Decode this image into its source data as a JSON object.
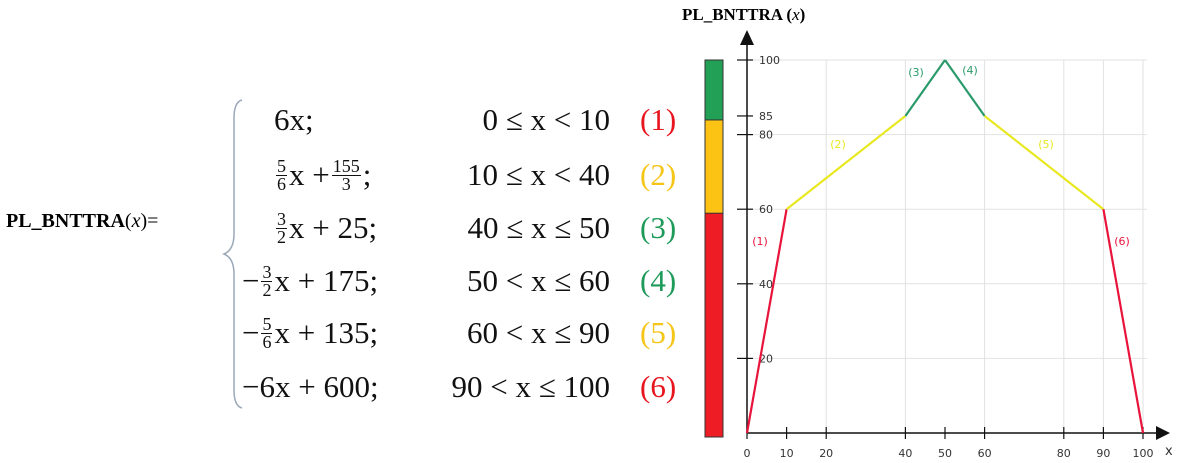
{
  "function_label": {
    "name": "PL_BNTTRA",
    "arg": "x",
    "eq": "="
  },
  "pieces": [
    {
      "pre": "",
      "frac1": null,
      "text": "6x;",
      "frac2": null,
      "tail": "",
      "condition": "0 ≤ x < 10",
      "tag": "(1)",
      "color": "#e8141e"
    },
    {
      "pre": "",
      "frac1": [
        "5",
        "6"
      ],
      "text": "x +",
      "frac2": [
        "155",
        "3"
      ],
      "tail": ";",
      "condition": "10 ≤ x < 40",
      "tag": "(2)",
      "color": "#f5c518"
    },
    {
      "pre": "",
      "frac1": [
        "3",
        "2"
      ],
      "text": "x + 25;",
      "frac2": null,
      "tail": "",
      "condition": "40 ≤ x ≤ 50",
      "tag": "(3)",
      "color": "#1e9a5a"
    },
    {
      "pre": "−",
      "frac1": [
        "3",
        "2"
      ],
      "text": "x + 175;",
      "frac2": null,
      "tail": "",
      "condition": "50 < x ≤ 60",
      "tag": "(4)",
      "color": "#1e9a5a"
    },
    {
      "pre": "−",
      "frac1": [
        "5",
        "6"
      ],
      "text": "x + 135;",
      "frac2": null,
      "tail": "",
      "condition": "60 < x ≤ 90",
      "tag": "(5)",
      "color": "#f5c518"
    },
    {
      "pre": "",
      "frac1": null,
      "text": "−6x + 600;",
      "frac2": null,
      "tail": "",
      "condition": "90 < x ≤ 100",
      "tag": "(6)",
      "color": "#e8141e"
    }
  ],
  "chart_data": {
    "type": "line",
    "title": "PL_BNTTRA (x)",
    "xlabel": "x",
    "xlim": [
      0,
      100
    ],
    "ylim": [
      0,
      100
    ],
    "x_ticks": [
      0,
      10,
      20,
      40,
      50,
      60,
      80,
      90,
      100
    ],
    "y_ticks": [
      20,
      40,
      60,
      80,
      85,
      100
    ],
    "grid": true,
    "series": [
      {
        "name": "(1)",
        "x": [
          0,
          10
        ],
        "y": [
          0,
          60
        ],
        "color": "#e8143c"
      },
      {
        "name": "(2)",
        "x": [
          10,
          40
        ],
        "y": [
          60,
          85
        ],
        "color": "#e8e820"
      },
      {
        "name": "(3)",
        "x": [
          40,
          50
        ],
        "y": [
          85,
          100
        ],
        "color": "#2a9a6a"
      },
      {
        "name": "(4)",
        "x": [
          50,
          60
        ],
        "y": [
          100,
          85
        ],
        "color": "#2a9a6a"
      },
      {
        "name": "(5)",
        "x": [
          60,
          90
        ],
        "y": [
          85,
          60
        ],
        "color": "#e8e820"
      },
      {
        "name": "(6)",
        "x": [
          90,
          100
        ],
        "y": [
          60,
          0
        ],
        "color": "#e8143c"
      }
    ],
    "color_bands": [
      {
        "from": 0,
        "to": 60,
        "color": "#ee1c25"
      },
      {
        "from": 60,
        "to": 85,
        "color": "#fcc314"
      },
      {
        "from": 85,
        "to": 100,
        "color": "#22a055"
      }
    ]
  }
}
